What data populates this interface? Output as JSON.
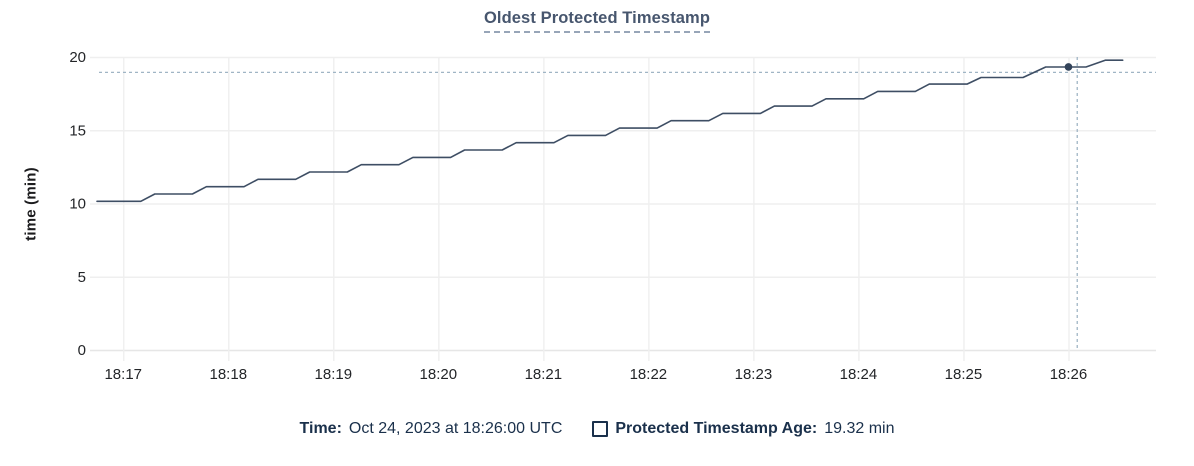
{
  "chart_data": {
    "type": "line",
    "title": "Oldest Protected Timestamp",
    "ylabel": "time (min)",
    "ylim": [
      0,
      20
    ],
    "y_ticks": [
      0,
      5,
      10,
      15,
      20
    ],
    "x_ticks": [
      {
        "t": 15,
        "label": "18:17"
      },
      {
        "t": 75,
        "label": "18:18"
      },
      {
        "t": 135,
        "label": "18:19"
      },
      {
        "t": 195,
        "label": "18:20"
      },
      {
        "t": 255,
        "label": "18:21"
      },
      {
        "t": 315,
        "label": "18:22"
      },
      {
        "t": 375,
        "label": "18:23"
      },
      {
        "t": 435,
        "label": "18:24"
      },
      {
        "t": 495,
        "label": "18:25"
      },
      {
        "t": 555,
        "label": "18:26"
      }
    ],
    "x_domain_seconds": [
      0,
      605
    ],
    "grid": true,
    "legend_position": "bottom",
    "series": [
      {
        "name": "Protected Timestamp Age",
        "unit": "min",
        "points": [
          [
            0,
            10.15
          ],
          [
            25,
            10.15
          ],
          [
            33,
            10.65
          ],
          [
            54.5,
            10.65
          ],
          [
            62.5,
            11.15
          ],
          [
            84,
            11.15
          ],
          [
            92,
            11.65
          ],
          [
            113.5,
            11.65
          ],
          [
            121.5,
            12.15
          ],
          [
            143,
            12.15
          ],
          [
            151,
            12.65
          ],
          [
            172.5,
            12.65
          ],
          [
            180.5,
            13.15
          ],
          [
            202,
            13.15
          ],
          [
            210,
            13.65
          ],
          [
            231.5,
            13.65
          ],
          [
            239.5,
            14.15
          ],
          [
            261,
            14.15
          ],
          [
            269,
            14.65
          ],
          [
            290.5,
            14.65
          ],
          [
            298.5,
            15.15
          ],
          [
            320,
            15.15
          ],
          [
            328,
            15.65
          ],
          [
            349.5,
            15.65
          ],
          [
            357.5,
            16.15
          ],
          [
            379,
            16.15
          ],
          [
            387,
            16.65
          ],
          [
            408.5,
            16.65
          ],
          [
            416.5,
            17.15
          ],
          [
            438,
            17.15
          ],
          [
            446,
            17.65
          ],
          [
            467.5,
            17.65
          ],
          [
            475.5,
            18.15
          ],
          [
            497,
            18.15
          ],
          [
            505,
            18.6
          ],
          [
            529,
            18.6
          ],
          [
            542,
            19.32
          ],
          [
            565,
            19.32
          ],
          [
            576,
            19.78
          ],
          [
            586,
            19.78
          ]
        ]
      }
    ],
    "hover_point": {
      "t": 555,
      "value": 19.32
    },
    "crosshair": {
      "x_t": 560,
      "y_value": 18.95
    },
    "colors": {
      "line": "#3e4e64",
      "point": "#33435a",
      "grid": "#efefef",
      "zero_line": "#e6e6e6",
      "crosshair": "#a0b5c5",
      "tick_text": "#232528"
    }
  },
  "footer": {
    "time_label": "Time:",
    "time_value": "Oct 24, 2023 at 18:26:00 UTC",
    "series_label": "Protected Timestamp Age:",
    "series_value": "19.32 min"
  }
}
